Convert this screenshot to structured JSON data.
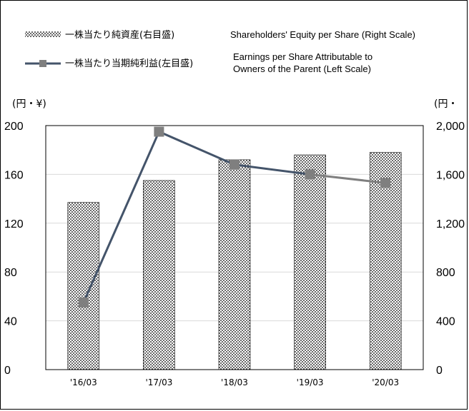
{
  "chart_data": {
    "type": "bar",
    "categories": [
      "'16/03",
      "'17/03",
      "'18/03",
      "'19/03",
      "'20/03"
    ],
    "series": [
      {
        "name": "一株当たり純資産(右目盛)",
        "name_en": "Shareholders' Equity per Share (Right Scale)",
        "kind": "bar",
        "axis": "right",
        "values": [
          1370,
          1550,
          1720,
          1760,
          1780
        ]
      },
      {
        "name": "一株当たり当期純利益(左目盛)",
        "name_en_line1": "Earnings per Share Attributable to",
        "name_en_line2": "Owners of the Parent (Left Scale)",
        "kind": "line",
        "axis": "left",
        "values": [
          55,
          195,
          168,
          160,
          153
        ]
      }
    ],
    "left_axis": {
      "unit_label": "(円・¥)",
      "ticks": [
        "0",
        "40",
        "80",
        "120",
        "160",
        "200"
      ],
      "ylim": [
        0,
        200
      ]
    },
    "right_axis": {
      "unit_label": "(円・",
      "ticks": [
        "0",
        "400",
        "800",
        "1,200",
        "1,600",
        "2,000"
      ],
      "ylim": [
        0,
        2000
      ]
    },
    "grid": true,
    "legend_position": "top",
    "colors": {
      "line": "#44546a",
      "line_tail": "#7f7f7f",
      "marker": "#7f7f7f",
      "grid": "#d9d9d9",
      "bar_fill": "#ffffff",
      "bar_dots": "#000000"
    }
  }
}
